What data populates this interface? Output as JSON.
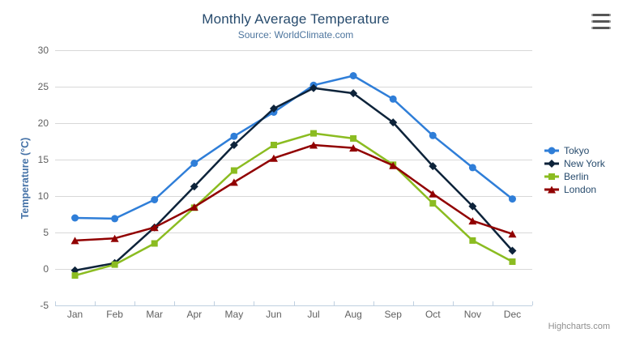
{
  "header": {
    "title": "Monthly Average Temperature",
    "subtitle": "Source: WorldClimate.com"
  },
  "credits": "Highcharts.com",
  "icons": {
    "export_menu": "hamburger-icon"
  },
  "colors": {
    "title": "#274b6d",
    "subtitle": "#4d759e",
    "axis_title": "#4572a7",
    "axis_labels": "#606060",
    "axis_line": "#c0d0e0",
    "gridline": "#d8d8d8",
    "legend_text": "#274b6d",
    "credits_text": "#8f8f8f"
  },
  "chart_data": {
    "type": "line",
    "title": "Monthly Average Temperature",
    "subtitle": "Source: WorldClimate.com",
    "xlabel": "",
    "ylabel": "Temperature (°C)",
    "ylim": [
      -5,
      30
    ],
    "ytick_step": 5,
    "grid": true,
    "legend_position": "right",
    "categories": [
      "Jan",
      "Feb",
      "Mar",
      "Apr",
      "May",
      "Jun",
      "Jul",
      "Aug",
      "Sep",
      "Oct",
      "Nov",
      "Dec"
    ],
    "series": [
      {
        "name": "Tokyo",
        "color": "#2f7ed8",
        "marker": "circle",
        "values": [
          7.0,
          6.9,
          9.5,
          14.5,
          18.2,
          21.5,
          25.2,
          26.5,
          23.3,
          18.3,
          13.9,
          9.6
        ]
      },
      {
        "name": "New York",
        "color": "#0d233a",
        "marker": "diamond",
        "values": [
          -0.2,
          0.8,
          5.7,
          11.3,
          17.0,
          22.0,
          24.8,
          24.1,
          20.1,
          14.1,
          8.6,
          2.5
        ]
      },
      {
        "name": "Berlin",
        "color": "#8bbc21",
        "marker": "square",
        "values": [
          -0.9,
          0.6,
          3.5,
          8.4,
          13.5,
          17.0,
          18.6,
          17.9,
          14.3,
          9.0,
          3.9,
          1.0
        ]
      },
      {
        "name": "London",
        "color": "#910000",
        "marker": "triangle",
        "values": [
          3.9,
          4.2,
          5.7,
          8.5,
          11.9,
          15.2,
          17.0,
          16.6,
          14.2,
          10.3,
          6.6,
          4.8
        ]
      }
    ]
  }
}
